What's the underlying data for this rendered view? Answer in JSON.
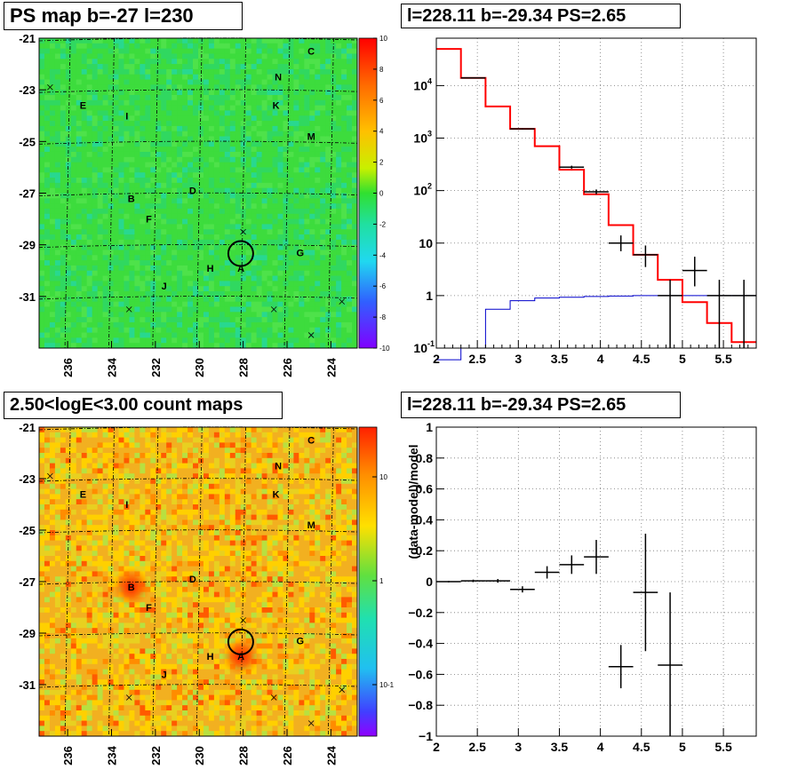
{
  "panels": {
    "ps_map": {
      "title": "PS map b=-27 l=230",
      "x_ticks": [
        "236",
        "234",
        "232",
        "230",
        "228",
        "226",
        "224"
      ],
      "y_ticks": [
        "-21",
        "-23",
        "-25",
        "-27",
        "-29",
        "-31"
      ],
      "colorbar_ticks": [
        "10",
        "8",
        "6",
        "4",
        "2",
        "0",
        "-2",
        "-4",
        "-6",
        "-8",
        "-10"
      ],
      "source_labels": [
        "C",
        "N",
        "E",
        "I",
        "K",
        "M",
        "B",
        "D",
        "F",
        "G",
        "H",
        "A",
        "J"
      ]
    },
    "count_map": {
      "title": "2.50<logE<3.00 count maps",
      "x_ticks": [
        "236",
        "234",
        "232",
        "230",
        "228",
        "226",
        "224"
      ],
      "y_ticks": [
        "-21",
        "-23",
        "-25",
        "-27",
        "-29",
        "-31"
      ],
      "colorbar_ticks": [
        "10",
        "1",
        "10-1"
      ],
      "source_labels": [
        "C",
        "N",
        "E",
        "I",
        "K",
        "M",
        "B",
        "D",
        "F",
        "G",
        "H",
        "A",
        "J"
      ]
    },
    "spectrum": {
      "title": "l=228.11 b=-29.34 PS=2.65"
    },
    "residual": {
      "title": "l=228.11 b=-29.34 PS=2.65",
      "ylabel": "(data-model)/model"
    }
  },
  "colors": {
    "model_total": "#ff0000",
    "model_source": "#0000cc",
    "data": "#000000",
    "map_green": "#3ddc3d",
    "count_orange": "#f0a020"
  },
  "chart_data": [
    {
      "type": "heatmap",
      "title": "PS map b=-27 l=230",
      "x_axis": "galactic longitude l (deg), decreasing to the right",
      "xlim": [
        237.3,
        222.8
      ],
      "ylim": [
        -21,
        -33
      ],
      "xticks": [
        236,
        234,
        232,
        230,
        228,
        226,
        224
      ],
      "yticks": [
        -21,
        -23,
        -25,
        -27,
        -29,
        -31
      ],
      "z_range": [
        -10,
        10
      ],
      "z_ticks": [
        10,
        8,
        6,
        4,
        2,
        0,
        -2,
        -4,
        -6,
        -8,
        -10
      ],
      "circle_center": {
        "l": 228.11,
        "b": -29.34
      },
      "sources": [
        {
          "name": "C",
          "l": 224.9,
          "b": -21.5
        },
        {
          "name": "N",
          "l": 226.4,
          "b": -22.5
        },
        {
          "name": "E",
          "l": 235.3,
          "b": -23.6
        },
        {
          "name": "I",
          "l": 233.3,
          "b": -24.0
        },
        {
          "name": "K",
          "l": 226.5,
          "b": -23.6
        },
        {
          "name": "M",
          "l": 224.9,
          "b": -24.8
        },
        {
          "name": "B",
          "l": 233.1,
          "b": -27.2
        },
        {
          "name": "D",
          "l": 230.3,
          "b": -26.9
        },
        {
          "name": "F",
          "l": 232.3,
          "b": -28.0
        },
        {
          "name": "G",
          "l": 225.4,
          "b": -29.3
        },
        {
          "name": "H",
          "l": 229.5,
          "b": -29.9
        },
        {
          "name": "A",
          "l": 228.1,
          "b": -29.9
        },
        {
          "name": "J",
          "l": 231.6,
          "b": -30.6
        }
      ]
    },
    {
      "type": "heatmap",
      "title": "2.50<logE<3.00 count maps",
      "xlim": [
        237.3,
        222.8
      ],
      "ylim": [
        -21,
        -33
      ],
      "xticks": [
        236,
        234,
        232,
        230,
        228,
        226,
        224
      ],
      "yticks": [
        -21,
        -23,
        -25,
        -27,
        -29,
        -31
      ],
      "z_scale": "log",
      "z_ticks": [
        10,
        1,
        0.1
      ],
      "bright_spots": [
        {
          "name": "B",
          "l": 233.1,
          "b": -27.2
        },
        {
          "name": "A",
          "l": 228.1,
          "b": -29.9
        }
      ],
      "circle_center": {
        "l": 228.11,
        "b": -29.34
      }
    },
    {
      "type": "line",
      "title": "l=228.11 b=-29.34 PS=2.65",
      "xlim": [
        2,
        5.9
      ],
      "ylim": [
        0.1,
        80000
      ],
      "yscale": "log",
      "xticks": [
        2,
        2.5,
        3,
        3.5,
        4,
        4.5,
        5,
        5.5
      ],
      "yticks": [
        0.1,
        1,
        10,
        100,
        1000,
        10000
      ],
      "grid": true,
      "series": [
        {
          "role": "total model (red step)",
          "edges": [
            2.0,
            2.3,
            2.6,
            2.9,
            3.2,
            3.5,
            3.8,
            4.1,
            4.4,
            4.7,
            5.0,
            5.3,
            5.6,
            5.9
          ],
          "values": [
            50000,
            14000,
            4000,
            1500,
            700,
            250,
            85,
            22,
            6,
            2,
            0.75,
            0.3,
            0.13
          ]
        },
        {
          "role": "source model (blue step)",
          "edges": [
            2.0,
            2.3,
            2.6,
            2.9,
            3.2,
            3.5,
            3.8,
            4.1,
            4.4,
            4.7,
            5.0,
            5.3,
            5.6,
            5.9
          ],
          "values": [
            0.06,
            0.1,
            0.55,
            0.8,
            0.9,
            0.93,
            0.96,
            0.98,
            1.0,
            1.0,
            1.0,
            1.0,
            1.0
          ]
        },
        {
          "role": "data points with errors",
          "points": [
            {
              "x": 2.45,
              "y": 14000,
              "xerr": 0.15,
              "ylo": 13800,
              "yhi": 14200
            },
            {
              "x": 3.05,
              "y": 1500,
              "xerr": 0.15,
              "ylo": 1460,
              "yhi": 1540
            },
            {
              "x": 3.65,
              "y": 280,
              "xerr": 0.15,
              "ylo": 262,
              "yhi": 298
            },
            {
              "x": 3.95,
              "y": 95,
              "xerr": 0.15,
              "ylo": 85,
              "yhi": 105
            },
            {
              "x": 4.25,
              "y": 10,
              "xerr": 0.15,
              "ylo": 7,
              "yhi": 14
            },
            {
              "x": 4.55,
              "y": 6,
              "xerr": 0.15,
              "ylo": 3.5,
              "yhi": 9
            },
            {
              "x": 4.85,
              "y": 1,
              "xerr": 0.15,
              "ylo": 0.1,
              "yhi": 2
            },
            {
              "x": 5.15,
              "y": 3,
              "xerr": 0.15,
              "ylo": 1.5,
              "yhi": 5.5
            },
            {
              "x": 5.45,
              "y": 1,
              "xerr": 0.15,
              "ylo": 0.1,
              "yhi": 2
            },
            {
              "x": 5.75,
              "y": 1,
              "xerr": 0.15,
              "ylo": 0.1,
              "yhi": 2
            }
          ]
        }
      ]
    },
    {
      "type": "scatter",
      "title": "l=228.11 b=-29.34 PS=2.65",
      "ylabel": "(data-model)/model",
      "xlim": [
        2,
        5.9
      ],
      "ylim": [
        -1,
        1
      ],
      "xticks": [
        2,
        2.5,
        3,
        3.5,
        4,
        4.5,
        5,
        5.5
      ],
      "yticks": [
        -1,
        -0.8,
        -0.6,
        -0.4,
        -0.2,
        0,
        0.2,
        0.4,
        0.6,
        0.8,
        1
      ],
      "grid": true,
      "points": [
        {
          "x": 2.15,
          "y": 0.0,
          "xerr": 0.15,
          "yerr": 0.005
        },
        {
          "x": 2.45,
          "y": 0.005,
          "xerr": 0.15,
          "yerr": 0.008
        },
        {
          "x": 2.75,
          "y": 0.005,
          "xerr": 0.15,
          "yerr": 0.012
        },
        {
          "x": 3.05,
          "y": -0.05,
          "xerr": 0.15,
          "yerr": 0.02
        },
        {
          "x": 3.35,
          "y": 0.06,
          "xerr": 0.15,
          "yerr": 0.04
        },
        {
          "x": 3.65,
          "y": 0.11,
          "xerr": 0.15,
          "yerr": 0.06
        },
        {
          "x": 3.95,
          "y": 0.16,
          "xerr": 0.15,
          "yerr": 0.11
        },
        {
          "x": 4.25,
          "y": -0.55,
          "xerr": 0.15,
          "yerr": 0.14
        },
        {
          "x": 4.55,
          "y": -0.07,
          "xerr": 0.15,
          "yerr": 0.38
        },
        {
          "x": 4.85,
          "y": -0.54,
          "xerr": 0.15,
          "yerr": 0.47
        }
      ]
    }
  ]
}
